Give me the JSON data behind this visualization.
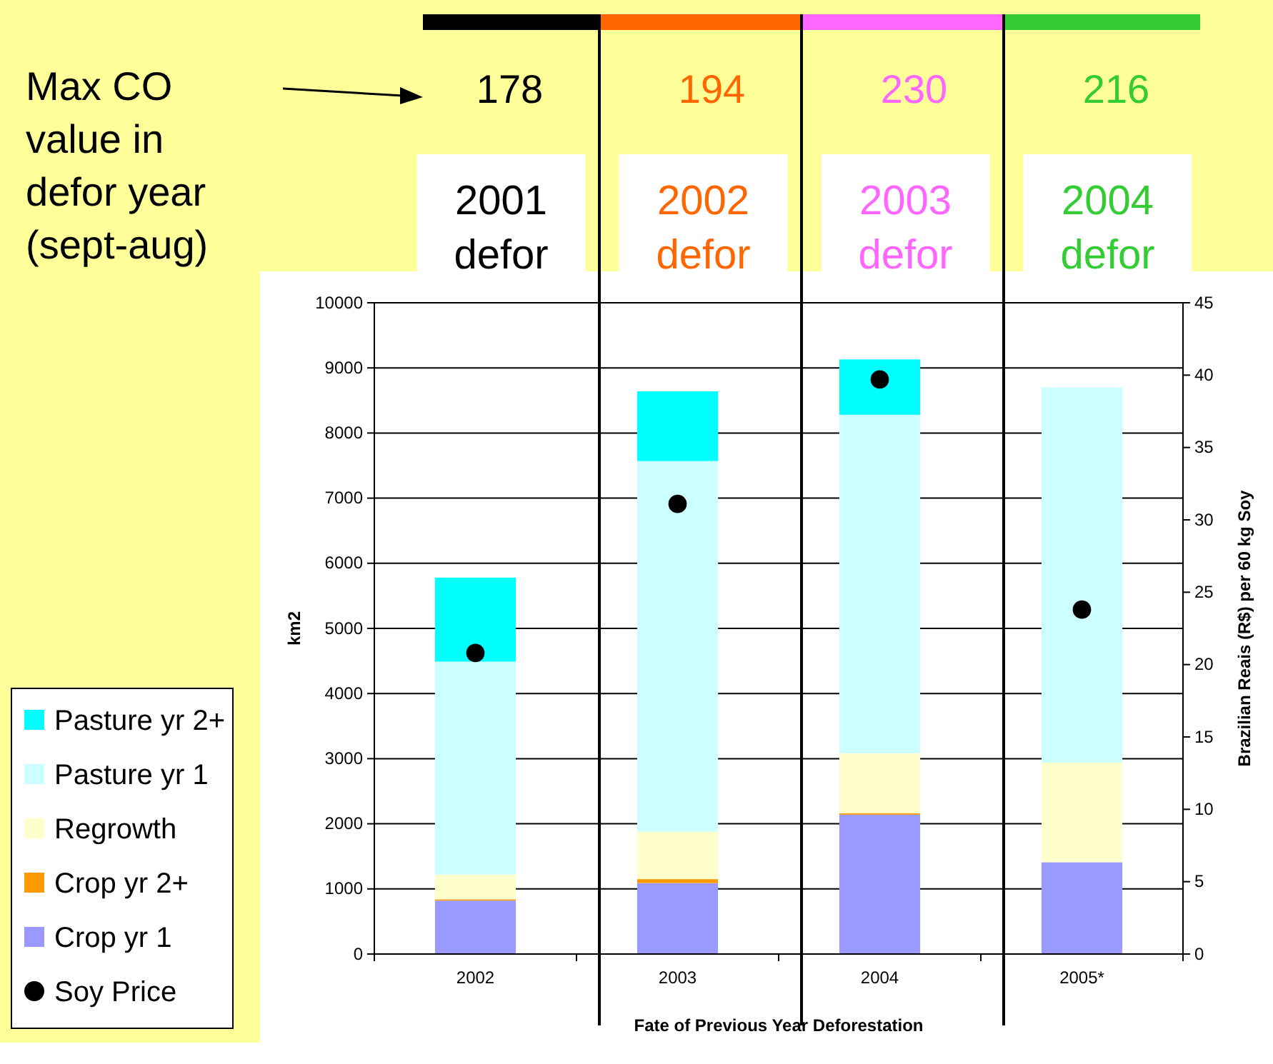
{
  "chart_data": {
    "type": "bar",
    "stacked": true,
    "categories": [
      "2002",
      "2003",
      "2004",
      "2005*"
    ],
    "series": [
      {
        "name": "Crop yr 1",
        "color": "#9999ff",
        "values": [
          820,
          1090,
          2140,
          1410
        ]
      },
      {
        "name": "Crop yr 2+",
        "color": "#ff9900",
        "values": [
          20,
          60,
          20,
          0
        ]
      },
      {
        "name": "Regrowth",
        "color": "#ffffcc",
        "values": [
          380,
          730,
          920,
          1530
        ]
      },
      {
        "name": "Pasture yr 1",
        "color": "#ccffff",
        "values": [
          3270,
          5690,
          5200,
          5760
        ]
      },
      {
        "name": "Pasture yr 2+",
        "color": "#00ffff",
        "values": [
          1290,
          1070,
          850,
          0
        ]
      },
      {
        "name": "Soy Price",
        "type": "scatter",
        "axis": "y2",
        "marker": "circle",
        "color": "#000000",
        "values": [
          20.8,
          31.1,
          39.7,
          23.8
        ]
      }
    ],
    "ylim": [
      0,
      10000
    ],
    "yticks": [
      0,
      1000,
      2000,
      3000,
      4000,
      5000,
      6000,
      7000,
      8000,
      9000,
      10000
    ],
    "y2lim": [
      0,
      45
    ],
    "y2ticks": [
      0,
      5,
      10,
      15,
      20,
      25,
      30,
      35,
      40,
      45
    ],
    "xlabel": "Fate of Previous Year Deforestation",
    "ylabel": "km2",
    "y2label": "Brazilian Reais (R$) per 60 kg Soy",
    "grid": "y",
    "legend": "left",
    "annotations": [
      "Max CO value in defor year (sept-aug)",
      "178",
      "194",
      "230",
      "216",
      "2001 defor",
      "2002 defor",
      "2003 defor",
      "2004 defor"
    ]
  }
}
